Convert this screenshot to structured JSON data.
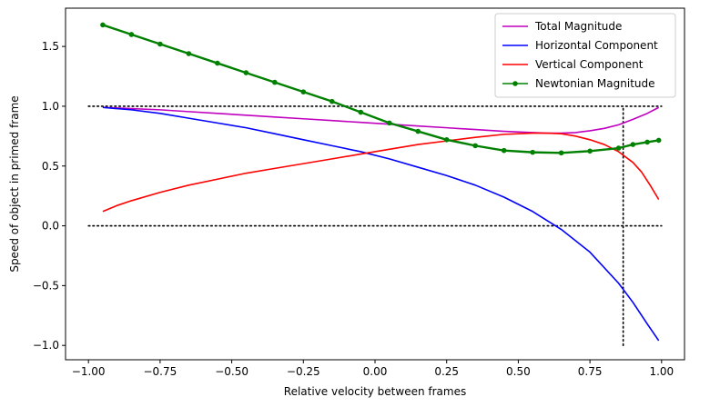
{
  "chart_data": {
    "type": "line",
    "title": "",
    "xlabel": "Relative velocity between frames",
    "ylabel": "Speed of object in primed frame",
    "xlim": [
      -1.08,
      1.08
    ],
    "ylim": [
      -1.12,
      1.82
    ],
    "xticks": [
      -1.0,
      -0.75,
      -0.5,
      -0.25,
      0.0,
      0.25,
      0.5,
      0.75,
      1.0
    ],
    "xtick_labels": [
      "−1.00",
      "−0.75",
      "−0.50",
      "−0.25",
      "0.00",
      "0.25",
      "0.50",
      "0.75",
      "1.00"
    ],
    "yticks": [
      -1.0,
      -0.5,
      0.0,
      0.5,
      1.0,
      1.5
    ],
    "ytick_labels": [
      "−1.0",
      "−0.5",
      "0.0",
      "0.5",
      "1.0",
      "1.5"
    ],
    "grid": false,
    "legend_position": "top-right",
    "series": [
      {
        "name": "Total Magnitude",
        "color": "#bf00bf",
        "marker": "none",
        "x": [
          -0.95,
          -0.85,
          -0.75,
          -0.65,
          -0.55,
          -0.45,
          -0.35,
          -0.25,
          -0.15,
          -0.05,
          0.05,
          0.15,
          0.25,
          0.35,
          0.45,
          0.55,
          0.6,
          0.65,
          0.7,
          0.75,
          0.8,
          0.85,
          0.9,
          0.95,
          0.99
        ],
        "y": [
          0.99,
          0.98,
          0.97,
          0.955,
          0.94,
          0.925,
          0.91,
          0.895,
          0.88,
          0.865,
          0.85,
          0.835,
          0.82,
          0.805,
          0.79,
          0.78,
          0.775,
          0.775,
          0.78,
          0.795,
          0.815,
          0.845,
          0.89,
          0.94,
          0.99
        ]
      },
      {
        "name": "Horizontal Component",
        "color": "#0000ff",
        "marker": "none",
        "x": [
          -0.95,
          -0.85,
          -0.75,
          -0.65,
          -0.55,
          -0.45,
          -0.35,
          -0.25,
          -0.15,
          -0.05,
          0.05,
          0.15,
          0.25,
          0.35,
          0.45,
          0.55,
          0.65,
          0.75,
          0.85,
          0.9,
          0.95,
          0.99
        ],
        "y": [
          0.99,
          0.97,
          0.94,
          0.9,
          0.86,
          0.82,
          0.77,
          0.72,
          0.67,
          0.62,
          0.56,
          0.49,
          0.42,
          0.34,
          0.24,
          0.12,
          -0.03,
          -0.22,
          -0.48,
          -0.64,
          -0.82,
          -0.96
        ]
      },
      {
        "name": "Vertical Component",
        "color": "#ff0000",
        "marker": "none",
        "x": [
          -0.95,
          -0.9,
          -0.85,
          -0.75,
          -0.65,
          -0.55,
          -0.45,
          -0.35,
          -0.25,
          -0.15,
          -0.05,
          0.05,
          0.15,
          0.25,
          0.35,
          0.45,
          0.55,
          0.6,
          0.65,
          0.7,
          0.75,
          0.8,
          0.85,
          0.9,
          0.93,
          0.96,
          0.99
        ],
        "y": [
          0.12,
          0.17,
          0.21,
          0.28,
          0.34,
          0.39,
          0.44,
          0.48,
          0.52,
          0.56,
          0.6,
          0.64,
          0.68,
          0.71,
          0.74,
          0.765,
          0.775,
          0.775,
          0.77,
          0.75,
          0.72,
          0.68,
          0.62,
          0.53,
          0.45,
          0.34,
          0.22
        ]
      },
      {
        "name": "Newtonian Magnitude",
        "color": "#008000",
        "marker": "dot",
        "x": [
          -0.95,
          -0.85,
          -0.75,
          -0.65,
          -0.55,
          -0.45,
          -0.35,
          -0.25,
          -0.15,
          -0.05,
          0.05,
          0.15,
          0.25,
          0.35,
          0.45,
          0.55,
          0.65,
          0.75,
          0.85,
          0.9,
          0.95,
          0.99
        ],
        "y": [
          1.68,
          1.6,
          1.52,
          1.44,
          1.36,
          1.28,
          1.2,
          1.12,
          1.04,
          0.95,
          0.86,
          0.79,
          0.72,
          0.67,
          0.63,
          0.615,
          0.61,
          0.625,
          0.65,
          0.68,
          0.7,
          0.715
        ]
      }
    ],
    "reference_lines": [
      {
        "x": [
          -1.0,
          1.0
        ],
        "y": [
          1.0,
          1.0
        ],
        "style": "dotted",
        "color": "#000000"
      },
      {
        "x": [
          -1.0,
          1.0
        ],
        "y": [
          0.0,
          0.0
        ],
        "style": "dotted",
        "color": "#000000"
      },
      {
        "x": [
          0.866,
          0.866
        ],
        "y": [
          -1.0,
          1.0
        ],
        "style": "dotted",
        "color": "#000000"
      }
    ]
  }
}
